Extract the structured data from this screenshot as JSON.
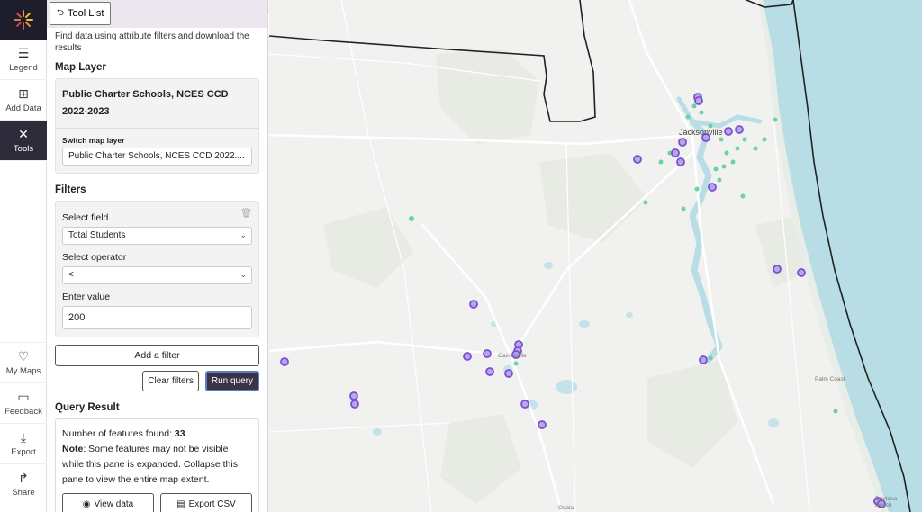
{
  "nav": {
    "legend": "Legend",
    "add_data": "Add Data",
    "tools": "Tools",
    "my_maps": "My Maps",
    "feedback": "Feedback",
    "export": "Export",
    "share": "Share"
  },
  "panel": {
    "tool_list_label": "Tool List",
    "description": "Find data using attribute filters and download the results",
    "map_layer_title": "Map Layer",
    "layer_name": "Public Charter Schools, NCES CCD 2022-2023",
    "switch_label": "Switch map layer",
    "switch_value": "Public Charter Schools, NCES CCD 2022...",
    "filters_title": "Filters",
    "select_field_label": "Select field",
    "select_field_value": "Total Students",
    "select_operator_label": "Select operator",
    "select_operator_value": "<",
    "enter_value_label": "Enter value",
    "value": "200",
    "add_filter": "Add a filter",
    "clear_filters": "Clear filters",
    "run_query": "Run query",
    "query_result_title": "Query Result",
    "count_text": "Number of features found: ",
    "count": "33",
    "note_label": "Note",
    "note_text": ": Some features may not be visible while this pane is expanded. Collapse this pane to view the entire map extent.",
    "view_data": "View data",
    "export_csv": "Export CSV"
  },
  "map": {
    "labels": {
      "jacksonville": "Jacksonville",
      "gainesville": "Gainesville",
      "palm_coast": "Palm Coast",
      "ocala": "Ocala",
      "daytona": "Daytona Beach"
    },
    "colors": {
      "water": "#b8dde5",
      "land": "#f1f1ef",
      "green_area": "#e6eae3",
      "road": "#ffffff",
      "boundary": "#222222",
      "query_point_fill": "#b8a7e6",
      "query_point_stroke": "#7a4fd4",
      "school_point": "#6cd1a6"
    }
  }
}
